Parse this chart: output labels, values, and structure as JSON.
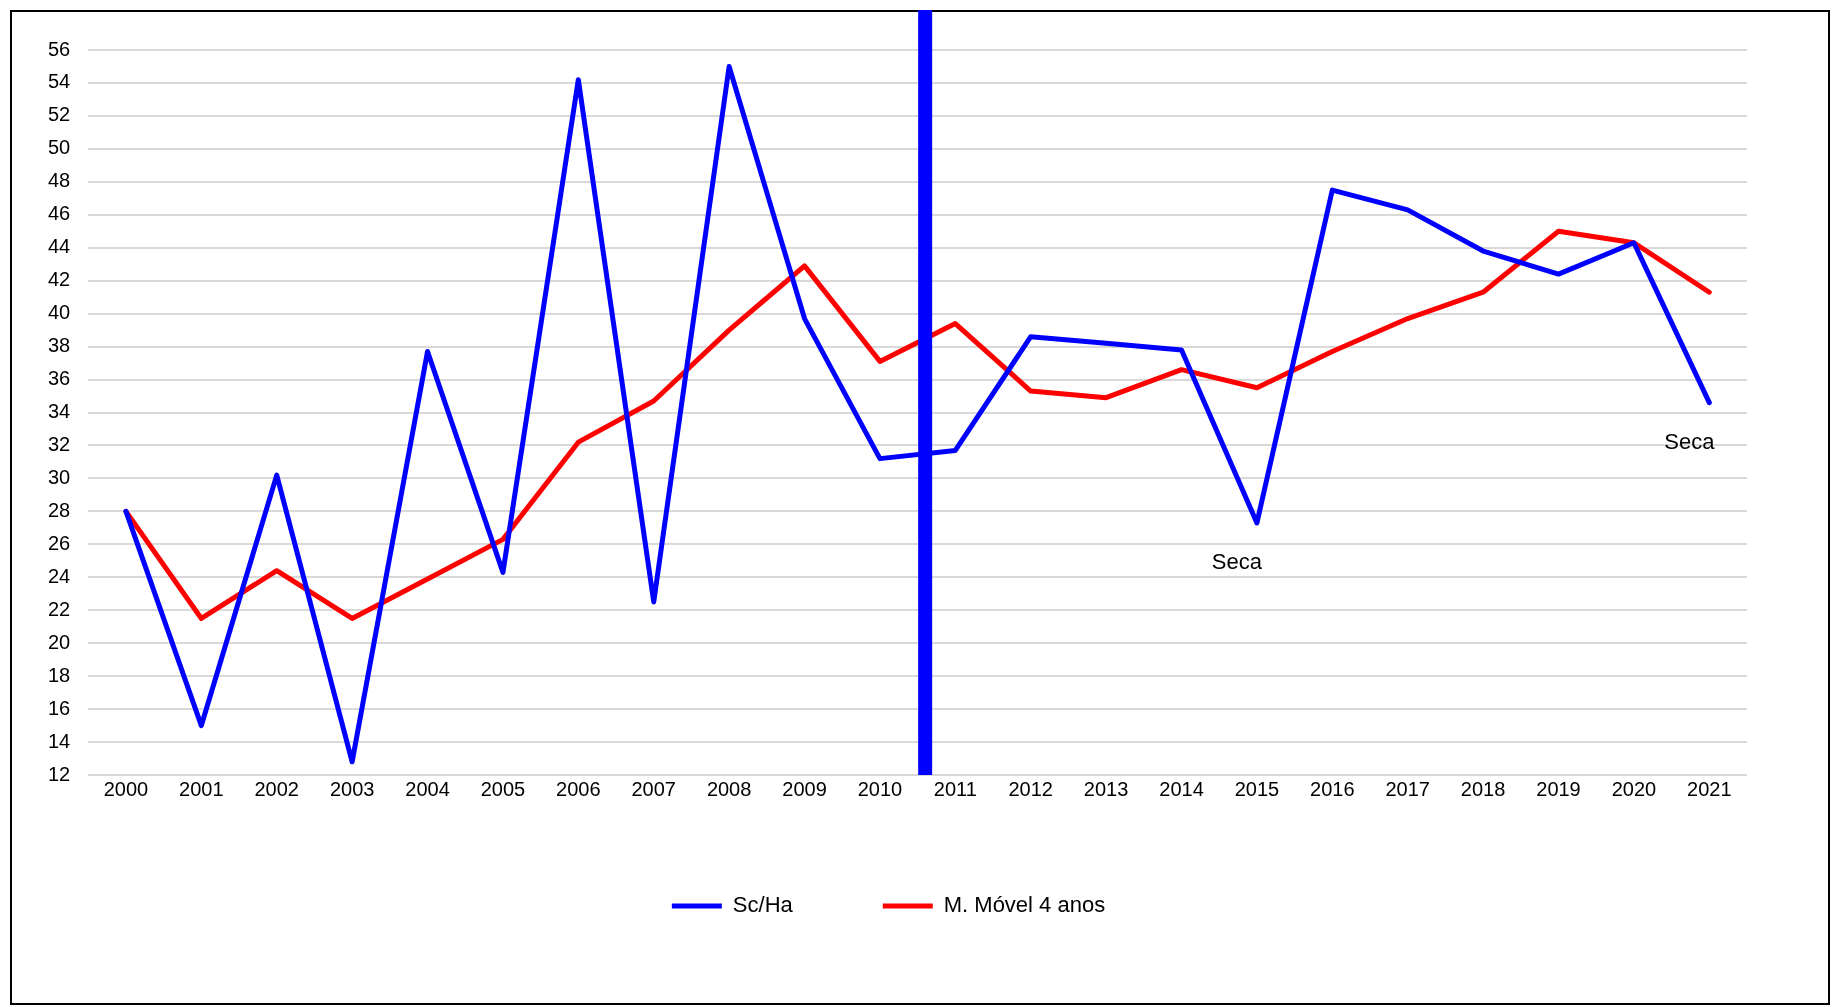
{
  "chart_data": {
    "type": "line",
    "x": [
      2000,
      2001,
      2002,
      2003,
      2004,
      2005,
      2006,
      2007,
      2008,
      2009,
      2010,
      2011,
      2012,
      2013,
      2014,
      2015,
      2016,
      2017,
      2018,
      2019,
      2020,
      2021
    ],
    "series": [
      {
        "name": "Sc/Ha",
        "color": "#0000ff",
        "values": [
          28,
          15,
          30.2,
          12.8,
          37.7,
          24.3,
          54.2,
          22.5,
          55,
          39.7,
          31.2,
          31.7,
          38.6,
          38.2,
          37.8,
          27.3,
          47.5,
          46.3,
          43.8,
          42.4,
          44.3,
          34.6
        ]
      },
      {
        "name": "M. Móvel 4 anos",
        "color": "#ff0000",
        "values": [
          28,
          21.5,
          24.4,
          21.5,
          23.9,
          26.3,
          32.2,
          34.7,
          39,
          42.9,
          37.1,
          39.4,
          35.3,
          34.9,
          36.6,
          35.5,
          37.7,
          39.7,
          41.3,
          45,
          44.3,
          41.3
        ]
      }
    ],
    "xlim": [
      1999.5,
      2021.5
    ],
    "xticks": [
      2000,
      2001,
      2002,
      2003,
      2004,
      2005,
      2006,
      2007,
      2008,
      2009,
      2010,
      2011,
      2012,
      2013,
      2014,
      2015,
      2016,
      2017,
      2018,
      2019,
      2020,
      2021
    ],
    "ylim": [
      12,
      56
    ],
    "yticks": [
      12,
      14,
      16,
      18,
      20,
      22,
      24,
      26,
      28,
      30,
      32,
      34,
      36,
      38,
      40,
      42,
      44,
      46,
      48,
      50,
      52,
      54,
      56
    ],
    "ref_lines": [
      {
        "axis": "x",
        "value": 2010.6,
        "color": "#0000ff"
      }
    ],
    "annotations": [
      {
        "text": "Seca",
        "x": 2015,
        "y": 27.3
      },
      {
        "text": "Seca",
        "x": 2021,
        "y": 34.6
      }
    ],
    "grid": "y",
    "legend": "bottom",
    "marker": "none",
    "line_style": "solid"
  }
}
